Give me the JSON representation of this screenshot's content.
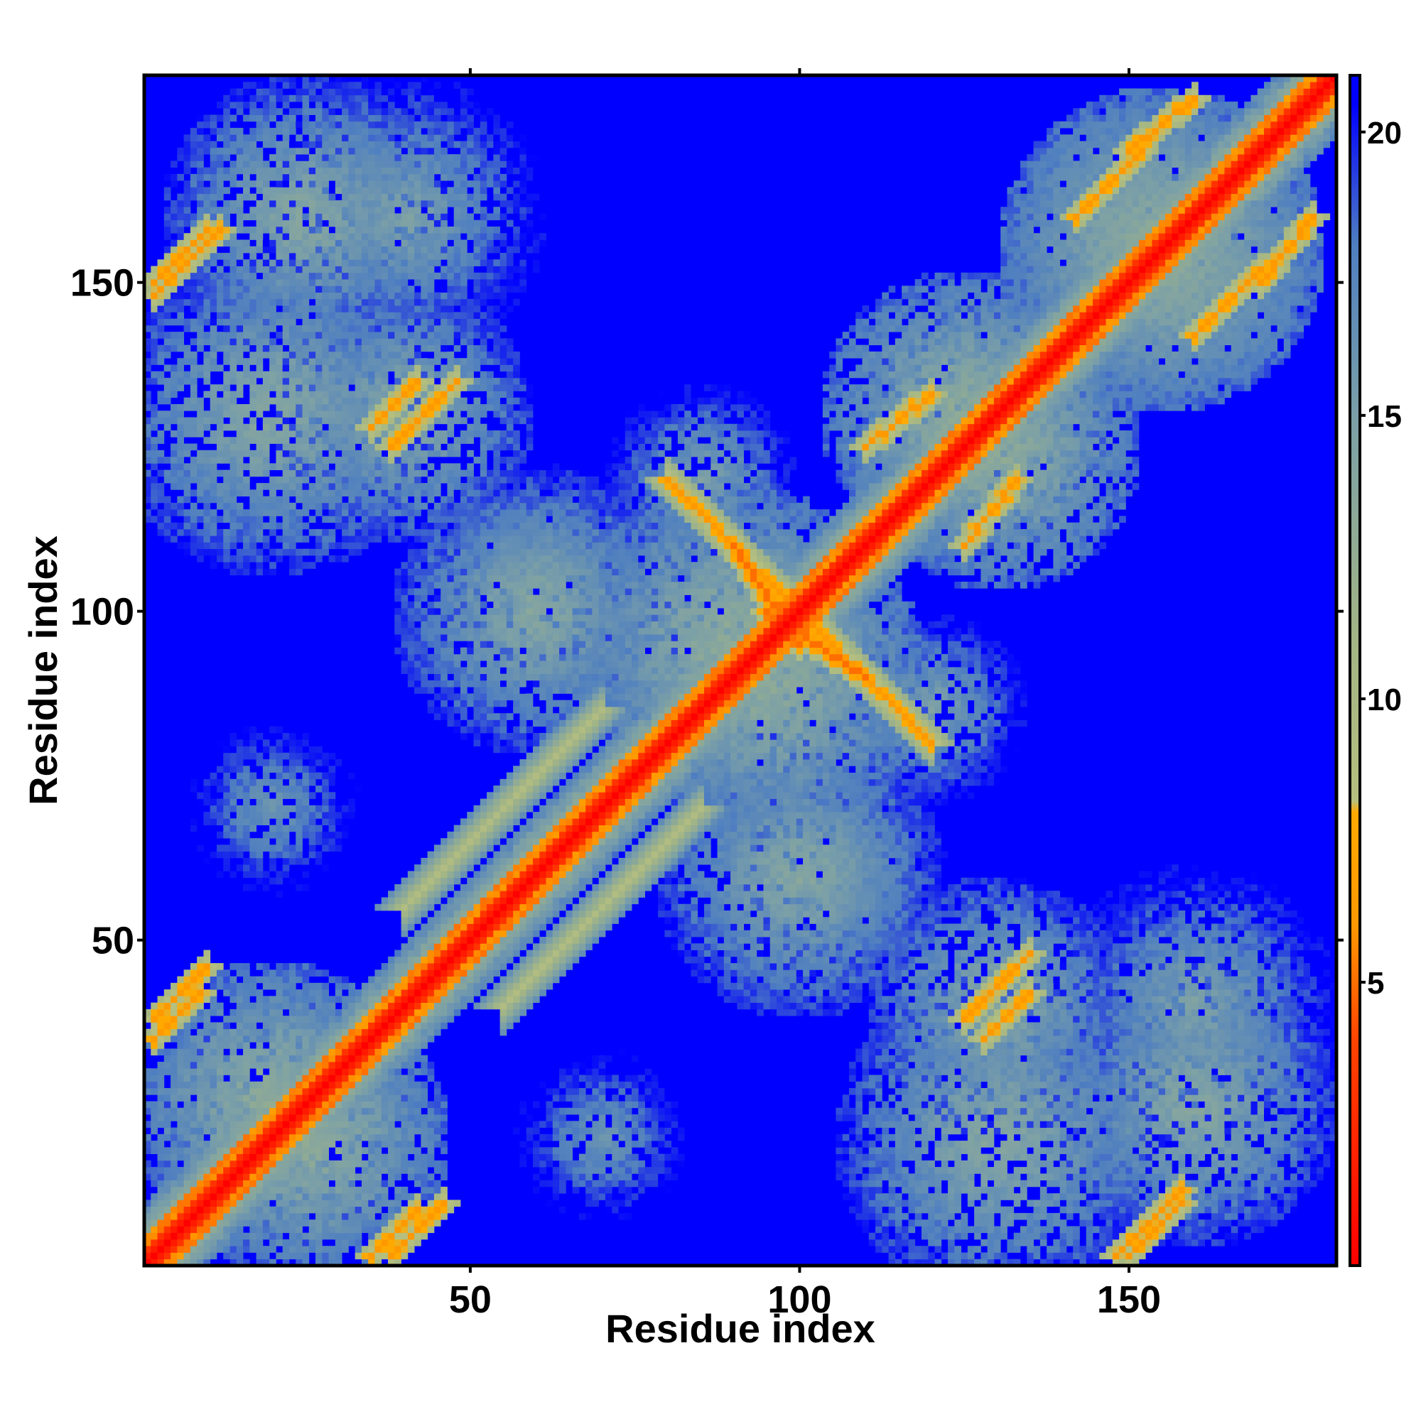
{
  "chart_data": {
    "type": "heatmap",
    "title": "",
    "xlabel": "Residue index",
    "ylabel": "Residue index",
    "xlim": [
      1,
      181
    ],
    "ylim": [
      1,
      181
    ],
    "n_residues": 181,
    "x_ticks": [
      50,
      100,
      150
    ],
    "y_ticks": [
      50,
      100,
      150
    ],
    "x_tick_labels": [
      "50",
      "100",
      "150"
    ],
    "y_tick_labels": [
      "50",
      "100",
      "150"
    ],
    "colorbar": {
      "range": [
        0,
        21
      ],
      "ticks": [
        5,
        10,
        15,
        20
      ],
      "tick_labels": [
        "5",
        "10",
        "15",
        "20"
      ],
      "stops": [
        {
          "value": 0,
          "color": "#ff0000"
        },
        {
          "value": 4,
          "color": "#ff4400"
        },
        {
          "value": 6,
          "color": "#ff9900"
        },
        {
          "value": 8,
          "color": "#ffaa00"
        },
        {
          "value": 8.2,
          "color": "#b5bf7f"
        },
        {
          "value": 11,
          "color": "#a3b585"
        },
        {
          "value": 15,
          "color": "#7a9fa8"
        },
        {
          "value": 18,
          "color": "#4f7fc0"
        },
        {
          "value": 20.5,
          "color": "#0000ff"
        }
      ]
    },
    "description_values": {
      "diagonal_distance": 0,
      "background_distance": 21
    },
    "contact_bands": [
      {
        "x0": 1,
        "y0": 2,
        "x1": 181,
        "y1": 182,
        "width": 3,
        "value": 2
      },
      {
        "x0": 40,
        "y0": 55,
        "x1": 70,
        "y1": 85,
        "width": 4,
        "value": 9
      },
      {
        "x0": 80,
        "y0": 120,
        "x1": 105,
        "y1": 95,
        "width": 3,
        "value": 6
      },
      {
        "x0": 95,
        "y0": 100,
        "x1": 110,
        "y1": 90,
        "width": 2,
        "value": 5
      },
      {
        "x0": 2,
        "y0": 150,
        "x1": 10,
        "y1": 158,
        "width": 2,
        "value": 6
      },
      {
        "x0": 2,
        "y0": 38,
        "x1": 10,
        "y1": 46,
        "width": 2,
        "value": 6
      },
      {
        "x0": 35,
        "y0": 2,
        "x1": 42,
        "y1": 9,
        "width": 2,
        "value": 6
      },
      {
        "x0": 148,
        "y0": 2,
        "x1": 158,
        "y1": 12,
        "width": 2,
        "value": 6
      },
      {
        "x0": 125,
        "y0": 38,
        "x1": 135,
        "y1": 48,
        "width": 2,
        "value": 6
      },
      {
        "x0": 110,
        "y0": 125,
        "x1": 120,
        "y1": 133,
        "width": 2,
        "value": 6
      },
      {
        "x0": 160,
        "y0": 142,
        "x1": 170,
        "y1": 152,
        "width": 2,
        "value": 6
      },
      {
        "x0": 150,
        "y0": 170,
        "x1": 160,
        "y1": 178,
        "width": 2,
        "value": 6
      },
      {
        "x0": 35,
        "y0": 128,
        "x1": 42,
        "y1": 135,
        "width": 2,
        "value": 6
      }
    ],
    "near_regions": [
      {
        "cx": 20,
        "cy": 25,
        "r": 22,
        "value": 12
      },
      {
        "cx": 40,
        "cy": 130,
        "r": 20,
        "value": 13
      },
      {
        "cx": 25,
        "cy": 160,
        "r": 22,
        "value": 13
      },
      {
        "cx": 90,
        "cy": 95,
        "r": 25,
        "value": 12
      },
      {
        "cx": 100,
        "cy": 60,
        "r": 22,
        "value": 13
      },
      {
        "cx": 130,
        "cy": 20,
        "r": 25,
        "value": 13
      },
      {
        "cx": 160,
        "cy": 40,
        "r": 22,
        "value": 14
      },
      {
        "cx": 155,
        "cy": 155,
        "r": 25,
        "value": 12
      },
      {
        "cx": 125,
        "cy": 130,
        "r": 22,
        "value": 12
      },
      {
        "cx": 60,
        "cy": 105,
        "r": 18,
        "value": 14
      },
      {
        "cx": 70,
        "cy": 20,
        "r": 15,
        "value": 15
      },
      {
        "cx": 120,
        "cy": 85,
        "r": 15,
        "value": 14
      }
    ]
  }
}
